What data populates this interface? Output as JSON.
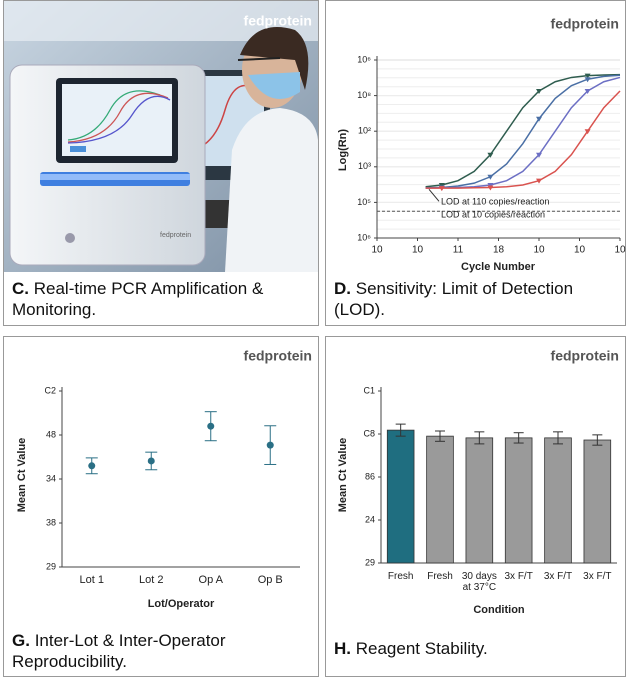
{
  "photo_panel": {
    "watermark": "fedprotein",
    "letter": "C.",
    "caption": "Real-time PCR Amplification & Monitoring."
  },
  "chart_data": [
    {
      "type": "line",
      "watermark": "fedprotein",
      "letter": "D.",
      "caption": "Sensitivity: Limit of Detection (LOD).",
      "x_label": "Cycle Number",
      "y_label": "Log(Rn)",
      "x": [
        1.2,
        1.6,
        2,
        2.4,
        2.8,
        3.2,
        3.6,
        4,
        4.4,
        4.8,
        5.2,
        5.6,
        6
      ],
      "series": [
        {
          "color": "#2f5d4f",
          "values": [
            1.44,
            1.49,
            1.61,
            1.87,
            2.34,
            3.0,
            3.66,
            4.13,
            4.39,
            4.51,
            4.56,
            4.58,
            4.59
          ]
        },
        {
          "color": "#4a6fa5",
          "values": [
            1.41,
            1.42,
            1.46,
            1.54,
            1.72,
            2.08,
            2.65,
            3.35,
            3.92,
            4.28,
            4.46,
            4.54,
            4.57
          ]
        },
        {
          "color": "#6c6fc4",
          "values": [
            1.4,
            1.41,
            1.42,
            1.44,
            1.49,
            1.61,
            1.87,
            2.34,
            3.0,
            3.66,
            4.13,
            4.39,
            4.51
          ]
        },
        {
          "color": "#d9534f",
          "values": [
            1.4,
            1.4,
            1.4,
            1.41,
            1.42,
            1.44,
            1.49,
            1.61,
            1.87,
            2.34,
            3.0,
            3.66,
            4.13
          ]
        }
      ],
      "xlim": [
        0,
        6
      ],
      "xticks": [
        {
          "value": 0,
          "label": "10"
        },
        {
          "value": 1,
          "label": "10"
        },
        {
          "value": 2,
          "label": "11"
        },
        {
          "value": 3,
          "label": "18"
        },
        {
          "value": 4,
          "label": "10"
        },
        {
          "value": 5,
          "label": "10"
        },
        {
          "value": 6,
          "label": "10"
        }
      ],
      "ylim": [
        0,
        5
      ],
      "yticks": [
        {
          "value": 0,
          "label": "10⁶"
        },
        {
          "value": 1,
          "label": "10⁵"
        },
        {
          "value": 2,
          "label": "10³"
        },
        {
          "value": 3,
          "label": "10²"
        },
        {
          "value": 4,
          "label": "10⁸"
        },
        {
          "value": 5,
          "label": "10⁶"
        }
      ],
      "grid": true,
      "reference_line": 0.75,
      "annotations": [
        "LOD at 110 copies/reaction",
        "LOD at 10 copies/reaction"
      ]
    },
    {
      "type": "scatter",
      "watermark": "fedprotein",
      "letter": "G.",
      "caption": "Inter-Lot & Inter-Operator Reproducibility.",
      "x_label": "Lot/Operator",
      "y_label": "Mean Ct Value",
      "categories": [
        "Lot 1",
        "Lot 2",
        "Op A",
        "Op B"
      ],
      "values": [
        2.3,
        2.41,
        3.2,
        2.77
      ],
      "errors": [
        0.18,
        0.2,
        0.33,
        0.44
      ],
      "color": "#2a6f85",
      "ylim": [
        0,
        4
      ],
      "yticks": [
        {
          "value": 0,
          "label": "29"
        },
        {
          "value": 1,
          "label": "38"
        },
        {
          "value": 2,
          "label": "34"
        },
        {
          "value": 3,
          "label": "48"
        },
        {
          "value": 4,
          "label": "C2"
        }
      ]
    },
    {
      "type": "bar",
      "watermark": "fedprotein",
      "letter": "H.",
      "caption": "Reagent Stability.",
      "x_label": "Condition",
      "y_label": "Mean Ct Value",
      "categories": [
        "Fresh",
        "Fresh",
        "30 days at 37°C",
        "3x F/T",
        "3x F/T",
        "3x F/T"
      ],
      "values": [
        3.09,
        2.95,
        2.91,
        2.91,
        2.91,
        2.86
      ],
      "errors": [
        0.14,
        0.12,
        0.14,
        0.12,
        0.14,
        0.12
      ],
      "colors": [
        "#1f6e80",
        "#9a9a9a",
        "#9a9a9a",
        "#9a9a9a",
        "#9a9a9a",
        "#9a9a9a"
      ],
      "ylim": [
        0,
        4
      ],
      "yticks": [
        {
          "value": 0,
          "label": "29"
        },
        {
          "value": 1,
          "label": "24"
        },
        {
          "value": 2,
          "label": "86"
        },
        {
          "value": 3,
          "label": "C8"
        },
        {
          "value": 4,
          "label": "C1"
        }
      ]
    }
  ]
}
